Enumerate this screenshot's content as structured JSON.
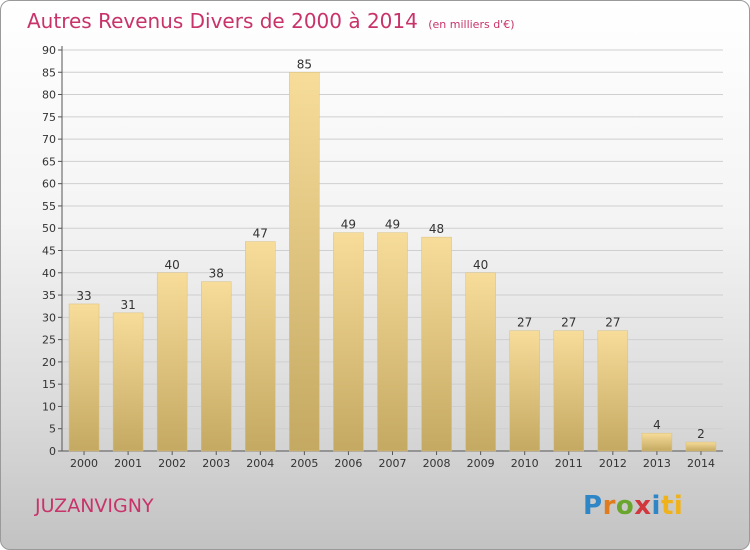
{
  "header": {
    "title": "Autres Revenus Divers de 2000 à 2014",
    "subtitle": "(en milliers d'€)"
  },
  "footer": {
    "place": "JUZANVIGNY",
    "brand_letters": [
      "P",
      "r",
      "o",
      "x",
      "i",
      "ti"
    ]
  },
  "colors": {
    "title": "#c8336a",
    "bar_top": "#f7dc9a",
    "bar_bottom": "#c4a962",
    "grid": "#cfcfcf"
  },
  "chart_data": {
    "type": "bar",
    "categories": [
      "2000",
      "2001",
      "2002",
      "2003",
      "2004",
      "2005",
      "2006",
      "2007",
      "2008",
      "2009",
      "2010",
      "2011",
      "2012",
      "2013",
      "2014"
    ],
    "values": [
      33,
      31,
      40,
      38,
      47,
      85,
      49,
      49,
      48,
      40,
      27,
      27,
      27,
      4,
      2
    ],
    "ylim": [
      0,
      90
    ],
    "yticks": [
      0,
      5,
      10,
      15,
      20,
      25,
      30,
      35,
      40,
      45,
      50,
      55,
      60,
      65,
      70,
      75,
      80,
      85,
      90
    ],
    "grid": true
  }
}
